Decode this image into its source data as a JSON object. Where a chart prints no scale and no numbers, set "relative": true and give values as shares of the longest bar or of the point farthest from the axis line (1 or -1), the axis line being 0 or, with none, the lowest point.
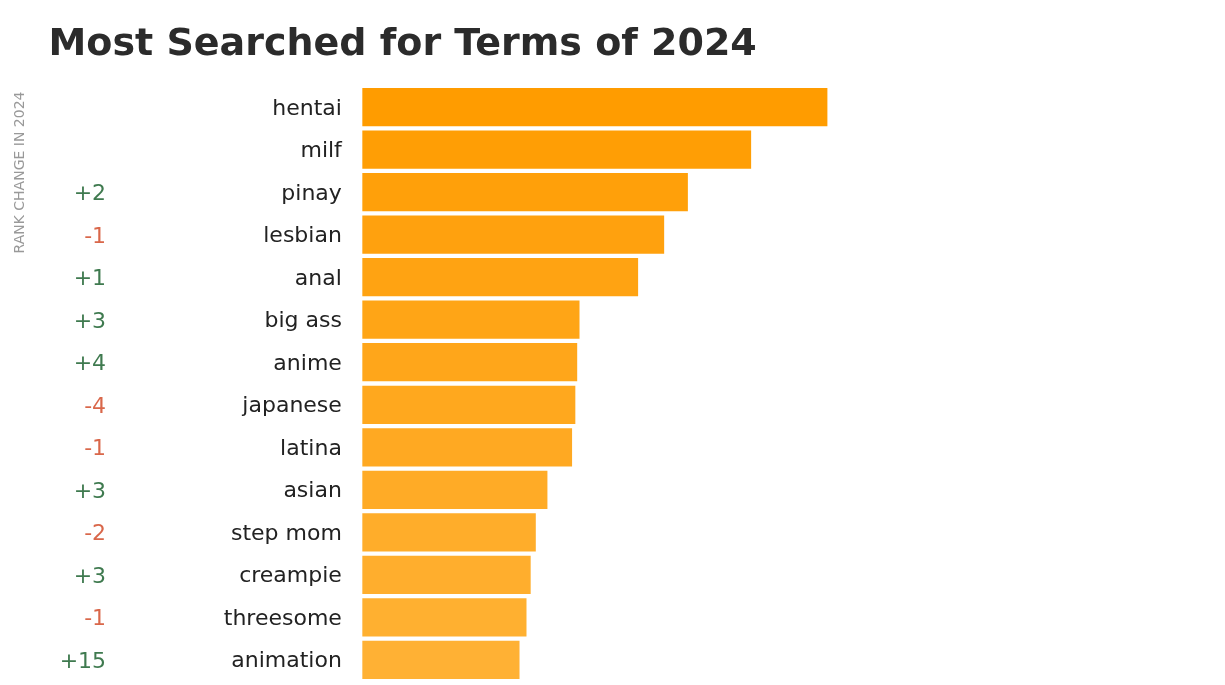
{
  "chart_data": {
    "type": "bar",
    "orientation": "horizontal",
    "relative": true,
    "title": "Most Searched for Terms of 2024",
    "categories": [
      "hentai",
      "milf",
      "pinay",
      "lesbian",
      "anal",
      "big ass",
      "anime",
      "japanese",
      "latina",
      "asian",
      "step mom",
      "creampie",
      "threesome",
      "animation"
    ],
    "values": [
      1,
      0.836,
      0.7,
      0.649,
      0.593,
      0.467,
      0.462,
      0.458,
      0.451,
      0.398,
      0.373,
      0.362,
      0.353,
      0.338
    ],
    "colors": [
      "#ff9c00",
      "#ff9e05",
      "#ffa00a",
      "#ffa10e",
      "#ffa312",
      "#ffa516",
      "#ffa61a",
      "#ffa81e",
      "#ffa922",
      "#ffab26",
      "#ffad2a",
      "#ffae2d",
      "#ffb030",
      "#ffb134"
    ],
    "annotations": [
      "RANK CHANGE IN 2024",
      "+2",
      "-1",
      "+1",
      "+3",
      "+4",
      "-4",
      "-1",
      "+3",
      "-2",
      "+3",
      "-1",
      "+15"
    ]
  }
}
